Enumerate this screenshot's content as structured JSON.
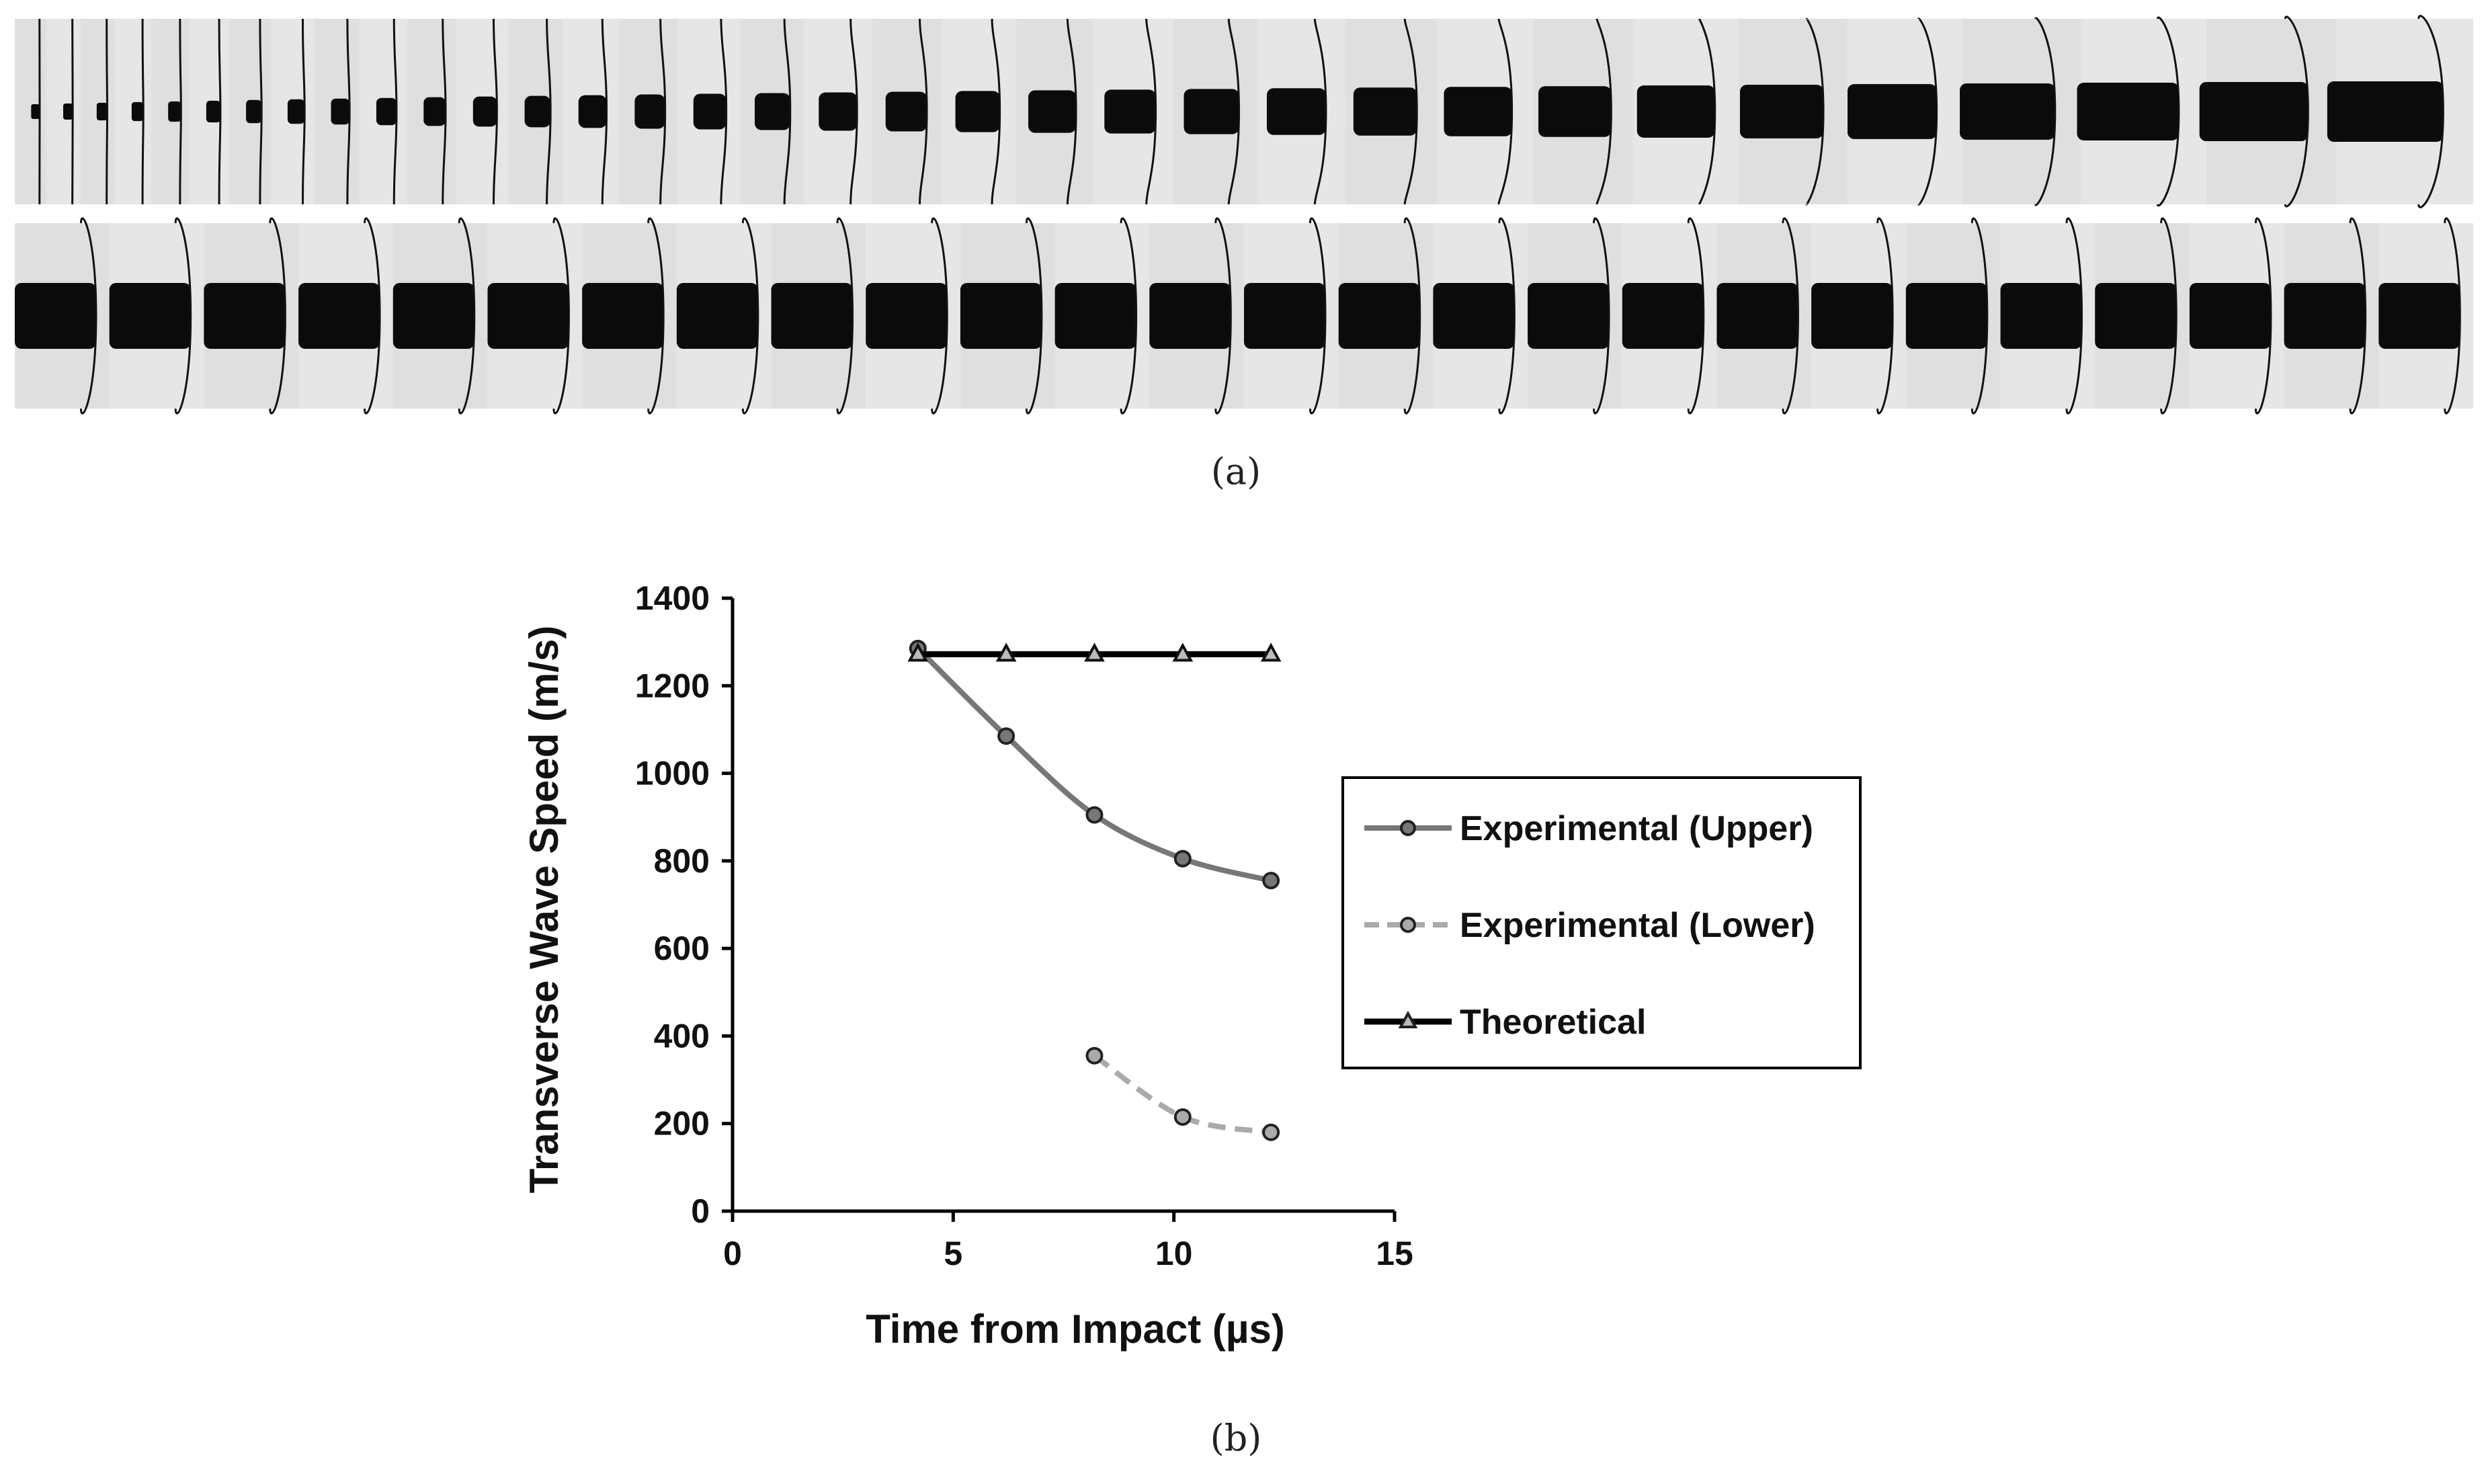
{
  "figure": {
    "caption_a": "(a)",
    "caption_b": "(b)",
    "strip_rows": [
      {
        "frame_count": 34
      },
      {
        "frame_count": 26
      }
    ]
  },
  "chart_data": {
    "type": "line",
    "title": "",
    "xlabel": "Time from Impact (µs)",
    "ylabel": "Transverse Wave Speed (m/s)",
    "xlim": [
      0,
      15
    ],
    "ylim": [
      0,
      1400
    ],
    "xticks": [
      0,
      5,
      10,
      15
    ],
    "yticks": [
      0,
      200,
      400,
      600,
      800,
      1000,
      1200,
      1400
    ],
    "grid": false,
    "legend_position": "right",
    "series": [
      {
        "name": "Experimental (Upper)",
        "x": [
          4.2,
          6.2,
          8.2,
          10.2,
          12.2
        ],
        "y": [
          1285,
          1085,
          905,
          805,
          755
        ],
        "color": "#777777",
        "dash": "solid",
        "marker": "circle"
      },
      {
        "name": "Experimental (Lower)",
        "x": [
          8.2,
          10.2,
          12.2
        ],
        "y": [
          355,
          215,
          180
        ],
        "color": "#aaaaaa",
        "dash": "dashed",
        "marker": "circle"
      },
      {
        "name": "Theoretical",
        "x": [
          4.2,
          6.2,
          8.2,
          10.2,
          12.2
        ],
        "y": [
          1272,
          1272,
          1272,
          1272,
          1272
        ],
        "color": "#000000",
        "dash": "solid",
        "marker": "triangle"
      }
    ]
  }
}
